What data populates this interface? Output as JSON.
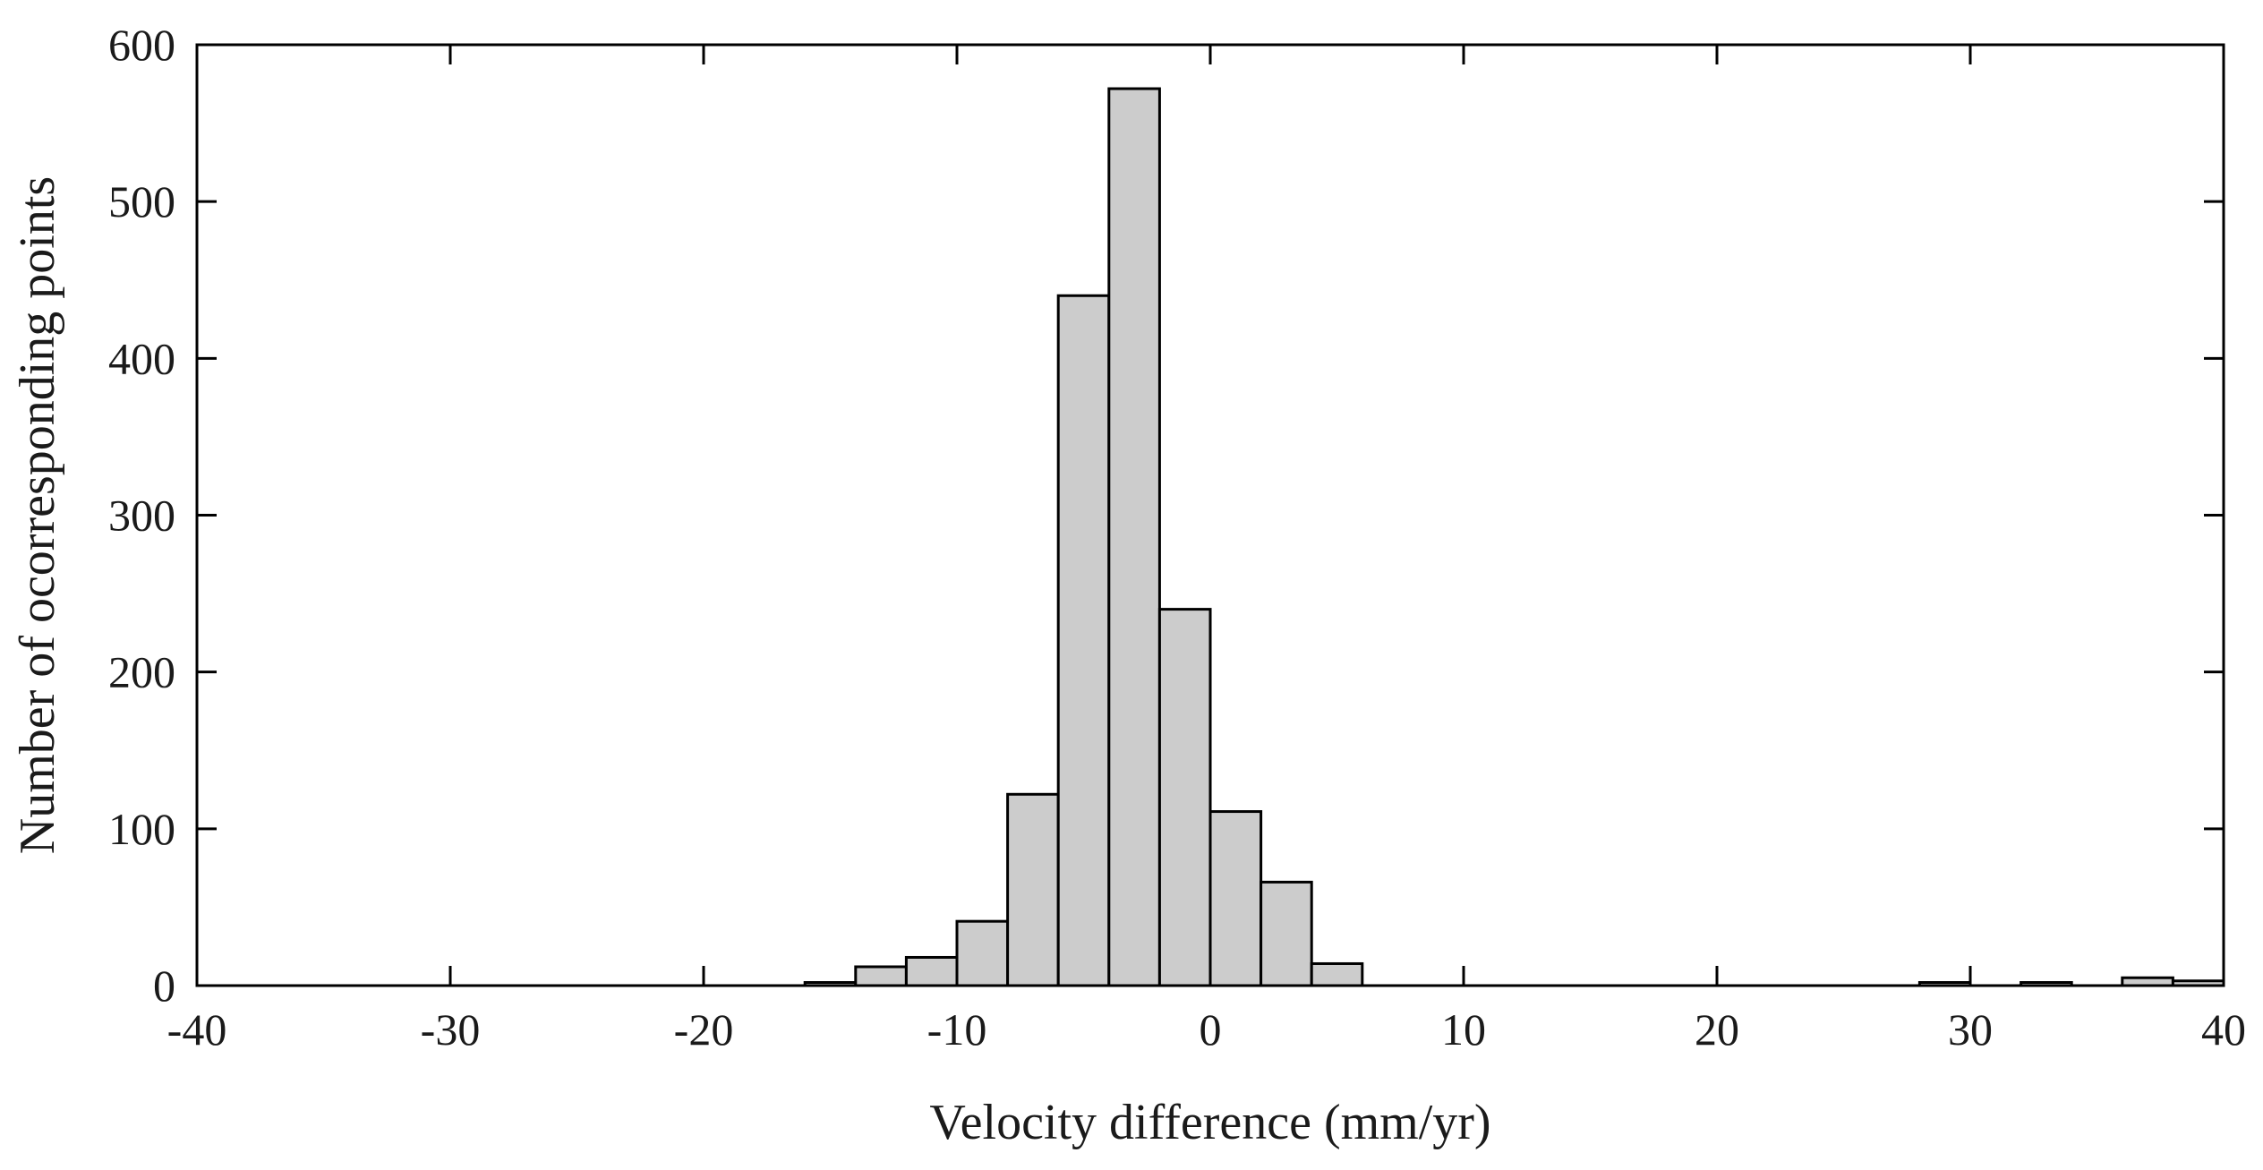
{
  "chart_data": {
    "type": "bar",
    "title": "",
    "xlabel": "Velocity difference (mm/yr)",
    "ylabel": "Number of ocorresponding points",
    "xlim": [
      -40,
      40
    ],
    "ylim": [
      0,
      600
    ],
    "xticks": [
      -40,
      -30,
      -20,
      -10,
      0,
      10,
      20,
      30,
      40
    ],
    "yticks": [
      0,
      100,
      200,
      300,
      400,
      500,
      600
    ],
    "bin_width": 2,
    "bar_color": "#cccccc",
    "edge_color": "#000000",
    "bins": [
      {
        "start": -16,
        "value": 2
      },
      {
        "start": -14,
        "value": 12
      },
      {
        "start": -12,
        "value": 18
      },
      {
        "start": -10,
        "value": 41
      },
      {
        "start": -8,
        "value": 122
      },
      {
        "start": -6,
        "value": 440
      },
      {
        "start": -4,
        "value": 572
      },
      {
        "start": -2,
        "value": 240
      },
      {
        "start": 0,
        "value": 111
      },
      {
        "start": 2,
        "value": 66
      },
      {
        "start": 4,
        "value": 14
      },
      {
        "start": 28,
        "value": 2
      },
      {
        "start": 32,
        "value": 2
      },
      {
        "start": 36,
        "value": 5
      },
      {
        "start": 38,
        "value": 3
      }
    ]
  }
}
